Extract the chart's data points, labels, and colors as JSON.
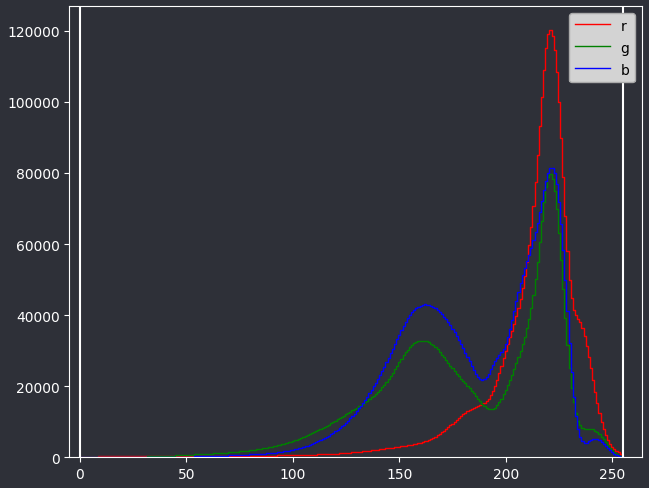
{
  "background_color": "#2e3038",
  "figure_facecolor": "#2e3038",
  "axes_facecolor": "#2e3038",
  "text_color": "white",
  "tick_color": "white",
  "spine_color": "white",
  "legend_facecolor": "#d3d3d3",
  "legend_edgecolor": "#aaaaaa",
  "legend_text_color": "black",
  "line_colors": {
    "r": "red",
    "g": "green",
    "b": "blue"
  },
  "legend_labels": [
    "r",
    "g",
    "b"
  ],
  "vline_positions": [
    0,
    255
  ],
  "vline_color": "white",
  "vline_linewidth": 1.5,
  "xlim": [
    -5,
    264
  ],
  "ylim": [
    0,
    127000
  ],
  "yticks": [
    0,
    20000,
    40000,
    60000,
    80000,
    100000,
    120000
  ],
  "xticks": [
    0,
    50,
    100,
    150,
    200,
    250
  ],
  "figsize": [
    6.49,
    4.89
  ],
  "dpi": 100,
  "num_bins": 256
}
